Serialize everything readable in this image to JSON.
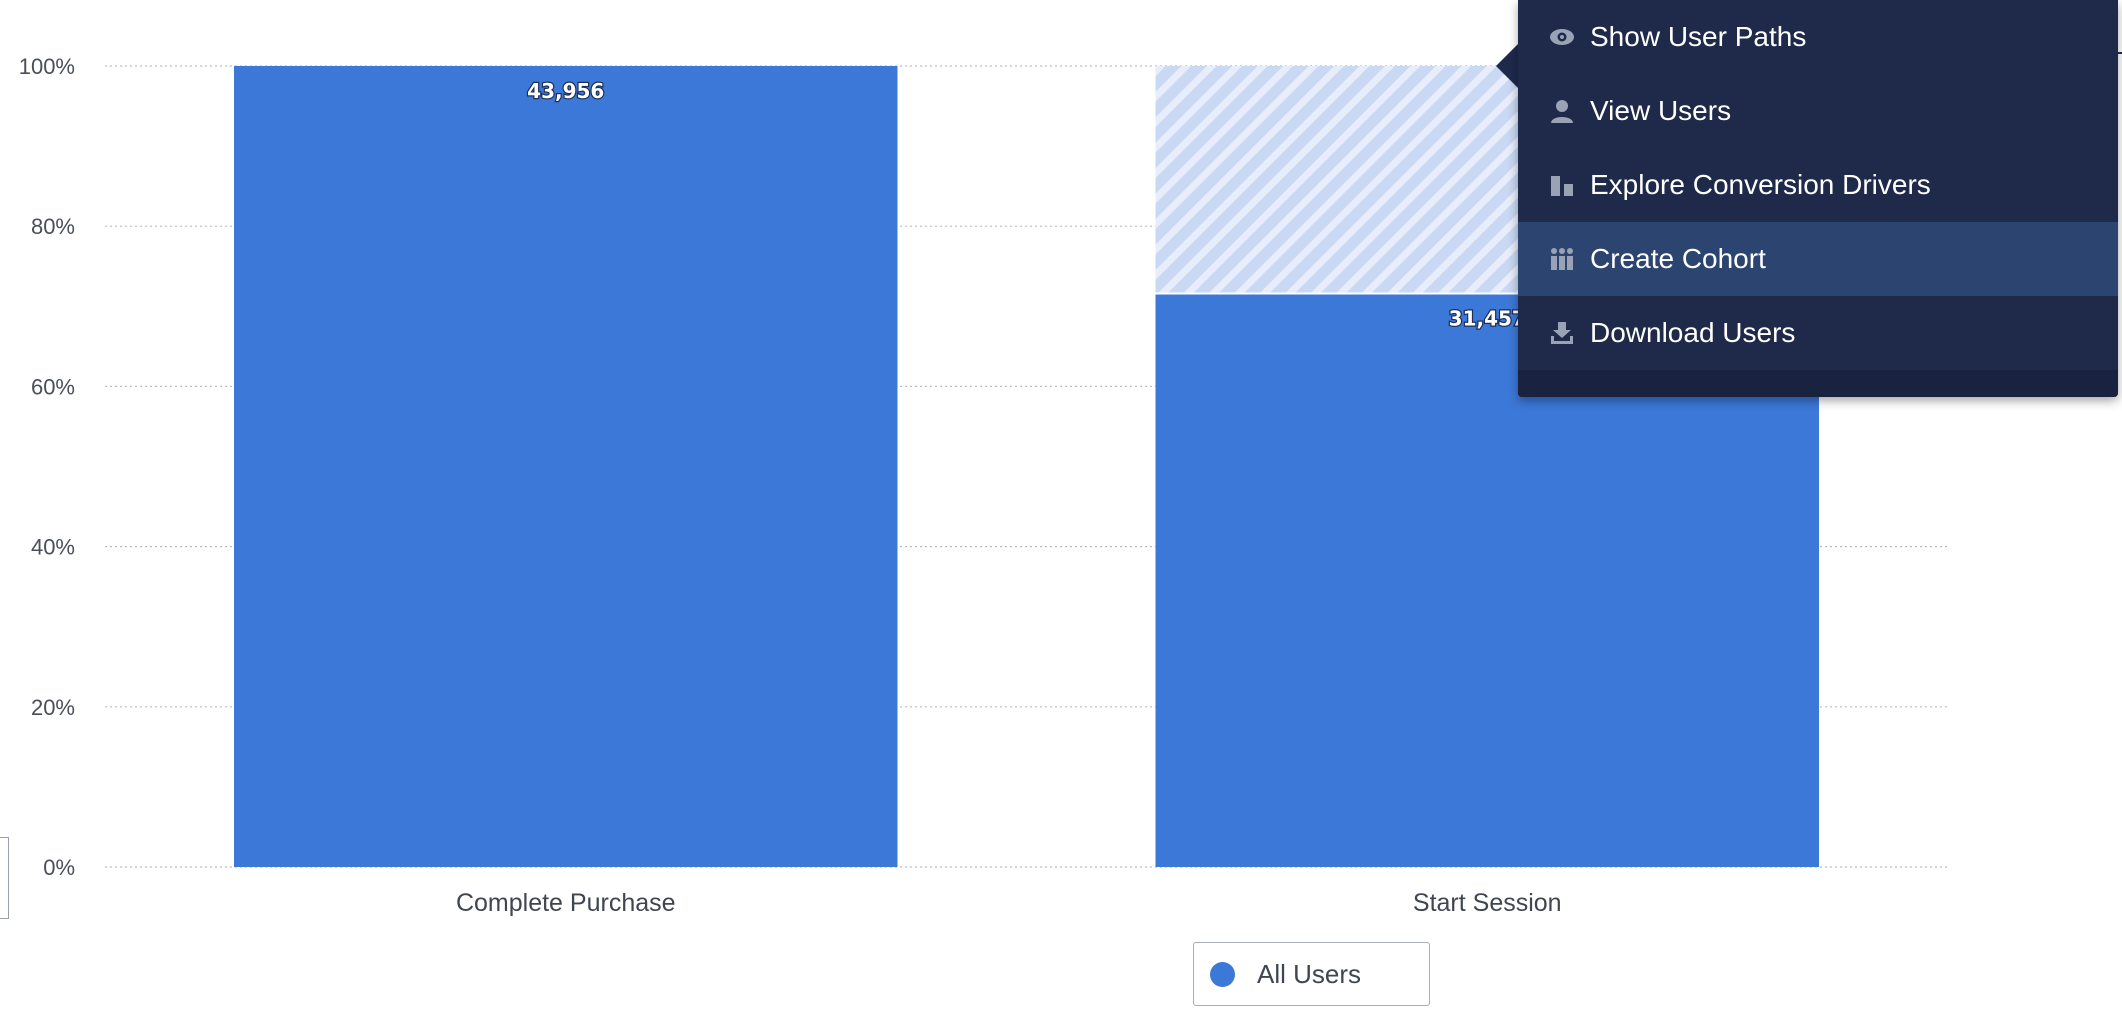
{
  "chart_data": {
    "type": "bar",
    "categories": [
      "Complete Purchase",
      "Start Session"
    ],
    "series": [
      {
        "name": "All Users",
        "values": [
          100,
          71.6
        ],
        "labels": [
          "43,956",
          "31,457"
        ]
      }
    ],
    "dropoff": [
      0,
      28.4
    ],
    "y_ticks": [
      "100%",
      "80%",
      "60%",
      "40%",
      "20%",
      "0%"
    ],
    "y_tick_values": [
      100,
      80,
      60,
      40,
      20,
      0
    ],
    "ylim": [
      0,
      100
    ],
    "grid": true,
    "legend_position": "bottom-center",
    "bar_color": "#3c78d8",
    "dropoff_color": "#c7d7f3"
  },
  "legend": {
    "label": "All Users",
    "color": "#3c78d8"
  },
  "context_menu": {
    "items": [
      {
        "label": "Show User Paths",
        "icon": "eye-icon"
      },
      {
        "label": "View Users",
        "icon": "user-icon"
      },
      {
        "label": "Explore Conversion Drivers",
        "icon": "bars-icon"
      },
      {
        "label": "Create Cohort",
        "icon": "people-icon",
        "active": true
      },
      {
        "label": "Download Users",
        "icon": "download-icon"
      }
    ]
  }
}
